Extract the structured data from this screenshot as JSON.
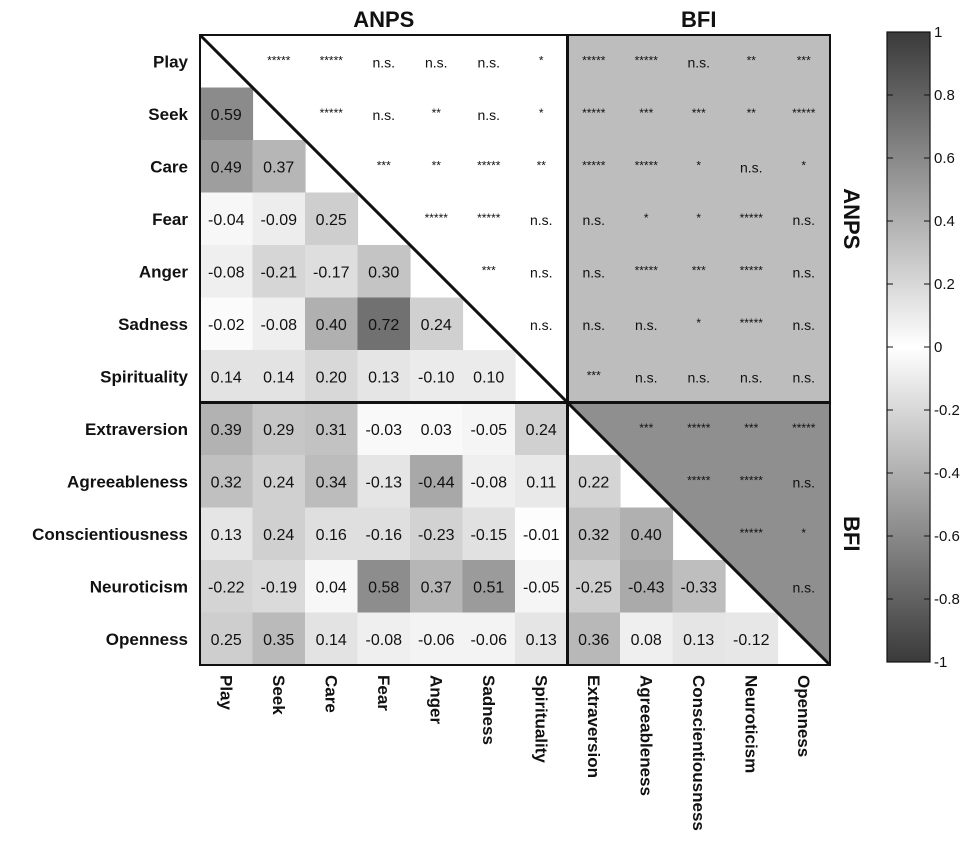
{
  "chart_data": {
    "type": "heatmap",
    "variables": [
      "Play",
      "Seek",
      "Care",
      "Fear",
      "Anger",
      "Sadness",
      "Spirituality",
      "Extraversion",
      "Agreeableness",
      "Conscientiousness",
      "Neuroticism",
      "Openness"
    ],
    "groups": [
      {
        "label": "ANPS",
        "members": [
          "Play",
          "Seek",
          "Care",
          "Fear",
          "Anger",
          "Sadness",
          "Spirituality"
        ]
      },
      {
        "label": "BFI",
        "members": [
          "Extraversion",
          "Agreeableness",
          "Conscientiousness",
          "Neuroticism",
          "Openness"
        ]
      }
    ],
    "lower_triangle_values": [
      [],
      [
        "0.59"
      ],
      [
        "0.49",
        "0.37"
      ],
      [
        "-0.04",
        "-0.09",
        "0.25"
      ],
      [
        "-0.08",
        "-0.21",
        "-0.17",
        "0.30"
      ],
      [
        "-0.02",
        "-0.08",
        "0.40",
        "0.72",
        "0.24"
      ],
      [
        "0.14",
        "0.14",
        "0.20",
        "0.13",
        "-0.10",
        "0.10"
      ],
      [
        "0.39",
        "0.29",
        "0.31",
        "-0.03",
        "0.03",
        "-0.05",
        "0.24"
      ],
      [
        "0.32",
        "0.24",
        "0.34",
        "-0.13",
        "-0.44",
        "-0.08",
        "0.11",
        "0.22"
      ],
      [
        "0.13",
        "0.24",
        "0.16",
        "-0.16",
        "-0.23",
        "-0.15",
        "-0.01",
        "0.32",
        "0.40"
      ],
      [
        "-0.22",
        "-0.19",
        "0.04",
        "0.58",
        "0.37",
        "0.51",
        "-0.05",
        "-0.25",
        "-0.43",
        "-0.33"
      ],
      [
        "0.25",
        "0.35",
        "0.14",
        "-0.08",
        "-0.06",
        "-0.06",
        "0.13",
        "0.36",
        "0.08",
        "0.13",
        "-0.12"
      ]
    ],
    "upper_triangle_significance": [
      [
        "*****",
        "*****",
        "n.s.",
        "n.s.",
        "n.s.",
        "*",
        "*****",
        "*****",
        "n.s.",
        "**",
        "***"
      ],
      [
        "*****",
        "n.s.",
        "**",
        "n.s.",
        "*",
        "*****",
        "***",
        "***",
        "**",
        "*****"
      ],
      [
        "***",
        "**",
        "*****",
        "**",
        "*****",
        "*****",
        "*",
        "n.s.",
        "*"
      ],
      [
        "*****",
        "*****",
        "n.s.",
        "n.s.",
        "*",
        "*",
        "*****",
        "n.s."
      ],
      [
        "***",
        "n.s.",
        "n.s.",
        "*****",
        "***",
        "*****",
        "n.s."
      ],
      [
        "n.s.",
        "n.s.",
        "n.s.",
        "*",
        "*****",
        "n.s."
      ],
      [
        "***",
        "n.s.",
        "n.s.",
        "n.s.",
        "n.s."
      ],
      [
        "***",
        "*****",
        "***",
        "*****"
      ],
      [
        "*****",
        "*****",
        "n.s."
      ],
      [
        "*****",
        "*"
      ],
      [
        "n.s."
      ]
    ],
    "colorbar": {
      "range": [
        -1,
        1
      ],
      "ticks": [
        "1",
        "0.8",
        "0.6",
        "0.4",
        "0.2",
        "0",
        "-0.2",
        "-0.4",
        "-0.6",
        "-0.8",
        "-1"
      ],
      "low_color": "#3a3a3a",
      "mid_color": "#ffffff",
      "high_color": "#3a3a3a"
    },
    "upper_block_shades": {
      "anps_anps": "#ffffff",
      "anps_bfi": "#bdbdbd",
      "bfi_bfi": "#8f8f8f"
    }
  }
}
